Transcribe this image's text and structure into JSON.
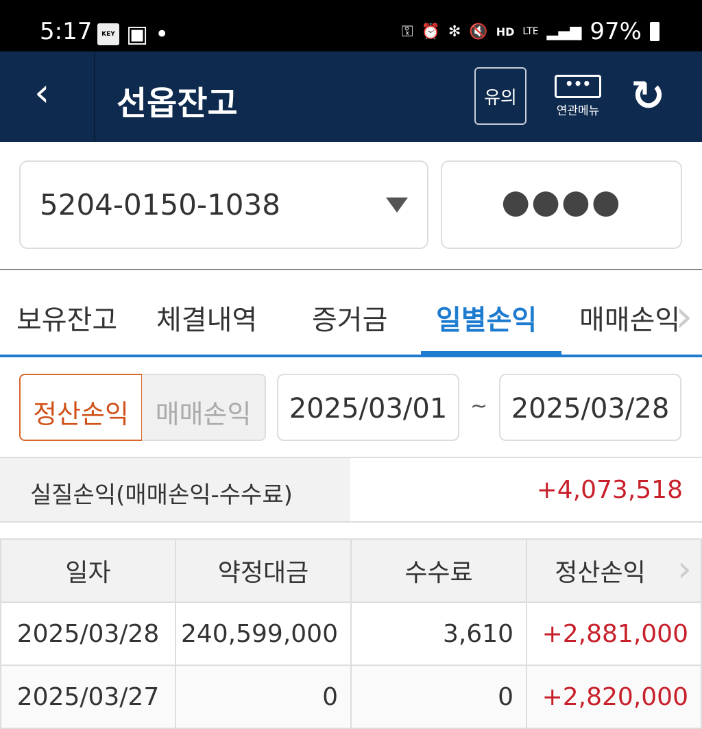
{
  "status_bar": {
    "time": "5:17",
    "key_badge": "KEY",
    "battery": "97%",
    "hd_voice": "HD",
    "lte": "LTE"
  },
  "header": {
    "title": "선옵잔고",
    "back_icon": "chevron-left-icon",
    "caution_label": "유의",
    "related_menu_label": "연관메뉴",
    "related_menu_dots": "•••",
    "refresh_icon": "refresh-icon"
  },
  "account": {
    "number": "5204-0150-1038",
    "password_mask": "●●●●"
  },
  "tabs": [
    {
      "label": "보유잔고"
    },
    {
      "label": "체결내역"
    },
    {
      "label": "증거금"
    },
    {
      "label": "일별손익",
      "active": true
    },
    {
      "label": "매매손익"
    }
  ],
  "filter": {
    "mode_settle": "정산손익",
    "mode_trade": "매매손익",
    "start_date": "2025/03/01",
    "separator": "~",
    "end_date": "2025/03/28"
  },
  "summary": {
    "label": "실질손익(매매손익-수수료)",
    "value": "+4,073,518"
  },
  "table": {
    "headers": [
      "일자",
      "약정대금",
      "수수료",
      "정산손익"
    ],
    "rows": [
      [
        "2025/03/28",
        "240,599,000",
        "3,610",
        "+2,881,000"
      ],
      [
        "2025/03/27",
        "0",
        "0",
        "+2,820,000"
      ]
    ]
  },
  "colors": {
    "header_bg": "#0f2a4f",
    "accent_blue": "#1e7cd0",
    "positive_red": "#c8202a",
    "active_orange": "#d0521a"
  }
}
